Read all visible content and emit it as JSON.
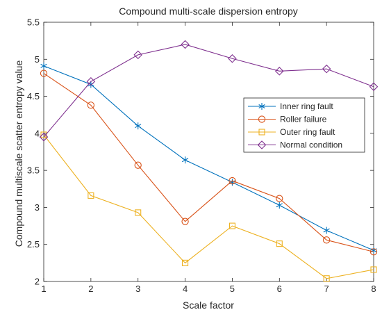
{
  "chart_data": {
    "type": "line",
    "title": "Compound  multi-scale dispersion entropy",
    "xlabel": "Scale factor",
    "ylabel": "Compound  multiscale scatter entropy value",
    "x": [
      1,
      2,
      3,
      4,
      5,
      6,
      7,
      8
    ],
    "xlim": [
      1,
      8
    ],
    "ylim": [
      2,
      5.5
    ],
    "xticks": [
      "1",
      "2",
      "3",
      "4",
      "5",
      "6",
      "7",
      "8"
    ],
    "yticks": [
      "2",
      "2.5",
      "3",
      "3.5",
      "4",
      "4.5",
      "5",
      "5.5"
    ],
    "grid": false,
    "legend_position": "right",
    "series": [
      {
        "name": "Inner ring fault",
        "marker": "asterisk",
        "color": "#0072BD",
        "values": [
          4.91,
          4.66,
          4.1,
          3.64,
          3.34,
          3.03,
          2.69,
          2.42
        ]
      },
      {
        "name": "Roller failure",
        "marker": "circle",
        "color": "#D95319",
        "values": [
          4.81,
          4.38,
          3.57,
          2.81,
          3.36,
          3.12,
          2.56,
          2.4
        ]
      },
      {
        "name": "Outer ring fault",
        "marker": "square",
        "color": "#EDB120",
        "values": [
          3.98,
          3.16,
          2.93,
          2.25,
          2.75,
          2.51,
          2.04,
          2.16
        ]
      },
      {
        "name": "Normal condition",
        "marker": "diamond",
        "color": "#7E2F8E",
        "values": [
          3.95,
          4.7,
          5.06,
          5.2,
          5.01,
          4.84,
          4.87,
          4.63
        ]
      }
    ]
  }
}
